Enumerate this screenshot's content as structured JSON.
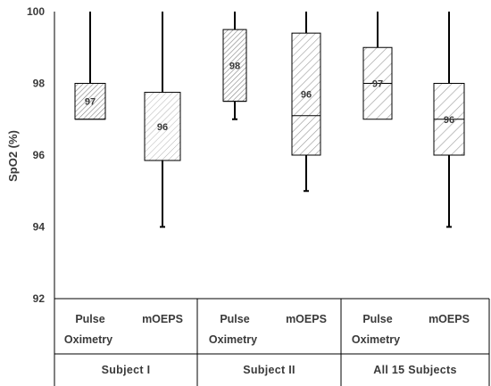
{
  "chart_data": {
    "type": "box",
    "title": "",
    "ylabel": "SpO2 (%)",
    "ylim": [
      92,
      100
    ],
    "yticks": [
      92,
      94,
      96,
      98,
      100
    ],
    "grid": false,
    "groups": [
      "Subject  I",
      "Subject  II",
      "All  15  Subjects"
    ],
    "categories": [
      {
        "top": "Pulse",
        "bottom": "Oximetry"
      },
      {
        "top": "mOEPS",
        "bottom": ""
      }
    ],
    "boxes": [
      {
        "group": 0,
        "category": 0,
        "min": 97,
        "q1": 97,
        "median": 97,
        "q3": 98,
        "max": 100,
        "label": "97"
      },
      {
        "group": 0,
        "category": 1,
        "min": 94,
        "q1": 95.85,
        "median": 95.85,
        "q3": 97.75,
        "max": 100,
        "label": "96"
      },
      {
        "group": 1,
        "category": 0,
        "min": 97,
        "q1": 97.5,
        "median": 97.5,
        "q3": 99.5,
        "max": 100,
        "label": "98"
      },
      {
        "group": 1,
        "category": 1,
        "min": 95,
        "q1": 96,
        "median": 97.1,
        "q3": 99.4,
        "max": 100,
        "label": "96"
      },
      {
        "group": 2,
        "category": 0,
        "min": 97,
        "q1": 97,
        "median": 98,
        "q3": 99,
        "max": 100,
        "label": "97"
      },
      {
        "group": 2,
        "category": 1,
        "min": 94,
        "q1": 96,
        "median": 97,
        "q3": 98,
        "max": 100,
        "label": "96"
      }
    ]
  }
}
